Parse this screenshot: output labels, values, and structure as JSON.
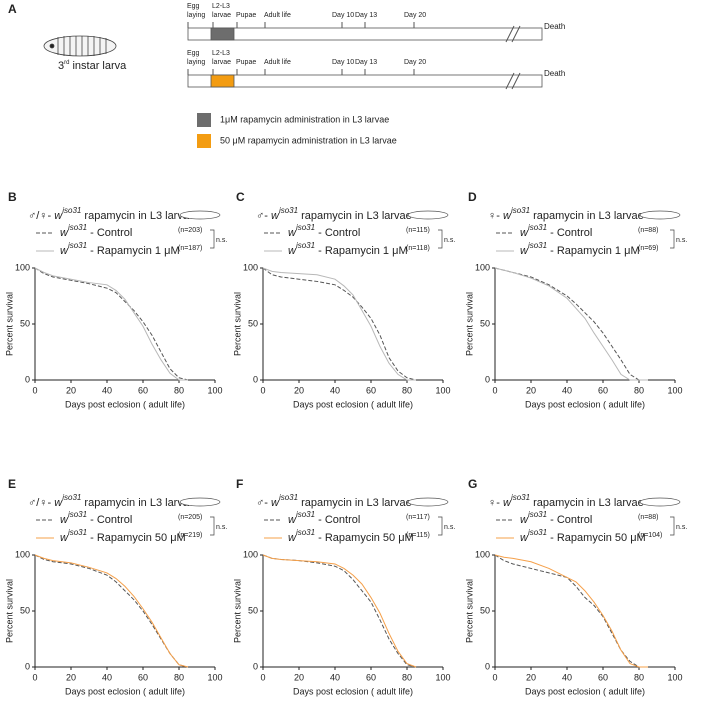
{
  "panel_a": {
    "label": "A",
    "larva_number": "3",
    "larva_sup": "rd",
    "larva_text": "instar larva",
    "timelines": [
      {
        "color": "#6d6d6d",
        "stages": [
          [
            "Egg",
            "laying"
          ],
          [
            "L2-L3",
            "larvae"
          ],
          [
            "Pupae"
          ],
          [
            "Adult life"
          ],
          [
            "Day 10"
          ],
          [
            "Day 13"
          ],
          [
            "Day 20"
          ]
        ],
        "end": "Death"
      },
      {
        "color": "#f39c12",
        "stages": [
          [
            "Egg",
            "laying"
          ],
          [
            "L2-L3",
            "larvae"
          ],
          [
            "Pupae"
          ],
          [
            "Adult life"
          ],
          [
            "Day 10"
          ],
          [
            "Day 13"
          ],
          [
            "Day 20"
          ]
        ],
        "end": "Death"
      }
    ],
    "legend": [
      {
        "color": "#6d6d6d",
        "text": "1μM rapamycin administration in L3 larvae"
      },
      {
        "color": "#f39c12",
        "text": "50 μM rapamycin administration in L3 larvae"
      }
    ]
  },
  "chart_data": [
    {
      "type": "line",
      "label": "B",
      "title_sex": "♂/♀- ",
      "title_w": "w",
      "title_sup": "iso31",
      "title_rest": " rapamycin in L3 larvae",
      "annotation": "n.s.",
      "ylabel": "Percent survival",
      "xlabel": "Days post eclosion ( adult life)",
      "xlim": [
        0,
        100
      ],
      "xticks": [
        0,
        20,
        40,
        60,
        80,
        100
      ],
      "ylim": [
        0,
        100
      ],
      "yticks": [
        0,
        50,
        100
      ],
      "x": [
        0,
        5,
        10,
        20,
        30,
        40,
        45,
        50,
        55,
        60,
        65,
        70,
        75,
        80,
        85
      ],
      "series": [
        {
          "prefix": "w",
          "sup": "iso31",
          "name": " - Control",
          "n": "(n=203)",
          "color": "#555555",
          "dash": true,
          "values": [
            100,
            95,
            92,
            89,
            86,
            82,
            78,
            70,
            62,
            52,
            40,
            25,
            10,
            2,
            0
          ]
        },
        {
          "prefix": "w",
          "sup": "iso31",
          "name": " - Rapamycin 1 μM",
          "n": "(n=187)",
          "color": "#b8b8b8",
          "dash": false,
          "values": [
            100,
            96,
            93,
            90,
            87,
            85,
            80,
            72,
            60,
            48,
            32,
            18,
            6,
            0,
            0
          ]
        }
      ]
    },
    {
      "type": "line",
      "label": "C",
      "title_sex": "♂- ",
      "title_w": "w",
      "title_sup": "iso31",
      "title_rest": " rapamycin in L3 larvae",
      "annotation": "n.s.",
      "ylabel": "Percent survival",
      "xlabel": "Days post eclosion ( adult life)",
      "xlim": [
        0,
        100
      ],
      "xticks": [
        0,
        20,
        40,
        60,
        80,
        100
      ],
      "ylim": [
        0,
        100
      ],
      "yticks": [
        0,
        50,
        100
      ],
      "x": [
        0,
        5,
        10,
        20,
        30,
        40,
        45,
        50,
        55,
        60,
        65,
        70,
        75,
        80,
        85
      ],
      "series": [
        {
          "prefix": "w",
          "sup": "iso31",
          "name": " - Control",
          "n": "(n=115)",
          "color": "#555555",
          "dash": true,
          "values": [
            100,
            94,
            92,
            90,
            88,
            85,
            80,
            74,
            65,
            55,
            40,
            20,
            8,
            2,
            0
          ]
        },
        {
          "prefix": "w",
          "sup": "iso31",
          "name": " - Rapamycin 1 μM",
          "n": "(n=118)",
          "color": "#b8b8b8",
          "dash": false,
          "values": [
            100,
            97,
            96,
            95,
            94,
            90,
            84,
            76,
            62,
            48,
            30,
            15,
            5,
            0,
            0
          ]
        }
      ]
    },
    {
      "type": "line",
      "label": "D",
      "title_sex": "♀- ",
      "title_w": "w",
      "title_sup": "iso31",
      "title_rest": " rapamycin in L3 larvae",
      "annotation": "n.s.",
      "ylabel": "Percent survival",
      "xlabel": "Days post eclosion ( adult life)",
      "xlim": [
        0,
        100
      ],
      "xticks": [
        0,
        20,
        40,
        60,
        80,
        100
      ],
      "ylim": [
        0,
        100
      ],
      "yticks": [
        0,
        50,
        100
      ],
      "x": [
        0,
        5,
        10,
        20,
        30,
        40,
        45,
        50,
        55,
        60,
        65,
        70,
        75,
        80,
        85
      ],
      "series": [
        {
          "prefix": "w",
          "sup": "iso31",
          "name": " - Control",
          "n": "(n=88)",
          "color": "#555555",
          "dash": true,
          "values": [
            100,
            98,
            96,
            92,
            85,
            75,
            68,
            60,
            52,
            42,
            30,
            18,
            5,
            0,
            0
          ]
        },
        {
          "prefix": "w",
          "sup": "iso31",
          "name": " - Rapamycin 1 μM",
          "n": "(n=69)",
          "color": "#b8b8b8",
          "dash": false,
          "values": [
            100,
            98,
            96,
            91,
            84,
            73,
            64,
            55,
            42,
            30,
            18,
            5,
            0,
            0,
            0
          ]
        }
      ]
    },
    {
      "type": "line",
      "label": "E",
      "title_sex": "♂/♀- ",
      "title_w": "w",
      "title_sup": "iso31",
      "title_rest": " rapamycin in L3 larvae",
      "annotation": "n.s.",
      "ylabel": "Percent survival",
      "xlabel": "Days post eclosion ( adult life)",
      "xlim": [
        0,
        100
      ],
      "xticks": [
        0,
        20,
        40,
        60,
        80,
        100
      ],
      "ylim": [
        0,
        100
      ],
      "yticks": [
        0,
        50,
        100
      ],
      "x": [
        0,
        5,
        10,
        20,
        30,
        40,
        45,
        50,
        55,
        60,
        65,
        70,
        75,
        80,
        85
      ],
      "series": [
        {
          "prefix": "w",
          "sup": "iso31",
          "name": " - Control",
          "n": "(n=205)",
          "color": "#555555",
          "dash": true,
          "values": [
            100,
            96,
            94,
            92,
            88,
            82,
            76,
            68,
            60,
            50,
            38,
            25,
            12,
            2,
            0
          ]
        },
        {
          "prefix": "w",
          "sup": "iso31",
          "name": " - Rapamycin 50 μM",
          "n": "(n=219)",
          "color": "#f5a04a",
          "dash": false,
          "values": [
            100,
            97,
            95,
            93,
            89,
            84,
            79,
            72,
            63,
            52,
            40,
            26,
            12,
            2,
            0
          ]
        }
      ]
    },
    {
      "type": "line",
      "label": "F",
      "title_sex": "♂- ",
      "title_w": "w",
      "title_sup": "iso31",
      "title_rest": " rapamycin in L3 larvae",
      "annotation": "n.s.",
      "ylabel": "Percent survival",
      "xlabel": "Days post eclosion ( adult life)",
      "xlim": [
        0,
        100
      ],
      "xticks": [
        0,
        20,
        40,
        60,
        80,
        100
      ],
      "ylim": [
        0,
        100
      ],
      "yticks": [
        0,
        50,
        100
      ],
      "x": [
        0,
        5,
        10,
        20,
        30,
        40,
        45,
        50,
        55,
        60,
        65,
        70,
        75,
        80,
        85
      ],
      "series": [
        {
          "prefix": "w",
          "sup": "iso31",
          "name": " - Control",
          "n": "(n=117)",
          "color": "#555555",
          "dash": true,
          "values": [
            100,
            97,
            96,
            95,
            93,
            90,
            86,
            78,
            68,
            58,
            42,
            25,
            12,
            2,
            0
          ]
        },
        {
          "prefix": "w",
          "sup": "iso31",
          "name": " - Rapamycin 50 μM",
          "n": "(n=115)",
          "color": "#f5a04a",
          "dash": false,
          "values": [
            100,
            97,
            96,
            95,
            94,
            92,
            88,
            82,
            74,
            62,
            48,
            30,
            14,
            3,
            0
          ]
        }
      ]
    },
    {
      "type": "line",
      "label": "G",
      "title_sex": "♀- ",
      "title_w": "w",
      "title_sup": "iso31",
      "title_rest": " rapamycin in L3 larvae",
      "annotation": "n.s.",
      "ylabel": "Percent survival",
      "xlabel": "Days post eclosion ( adult life)",
      "xlim": [
        0,
        100
      ],
      "xticks": [
        0,
        20,
        40,
        60,
        80,
        100
      ],
      "ylim": [
        0,
        100
      ],
      "yticks": [
        0,
        50,
        100
      ],
      "x": [
        0,
        5,
        10,
        20,
        30,
        40,
        45,
        50,
        55,
        60,
        65,
        70,
        75,
        80,
        85
      ],
      "series": [
        {
          "prefix": "w",
          "sup": "iso31",
          "name": " - Control",
          "n": "(n=88)",
          "color": "#555555",
          "dash": true,
          "values": [
            100,
            95,
            92,
            88,
            84,
            80,
            72,
            62,
            55,
            45,
            30,
            15,
            5,
            0,
            0
          ]
        },
        {
          "prefix": "w",
          "sup": "iso31",
          "name": " - Rapamycin 50 μM",
          "n": "(n=104)",
          "color": "#f5a04a",
          "dash": false,
          "values": [
            100,
            98,
            97,
            94,
            88,
            80,
            76,
            68,
            58,
            46,
            32,
            15,
            3,
            0,
            0
          ]
        }
      ]
    }
  ]
}
